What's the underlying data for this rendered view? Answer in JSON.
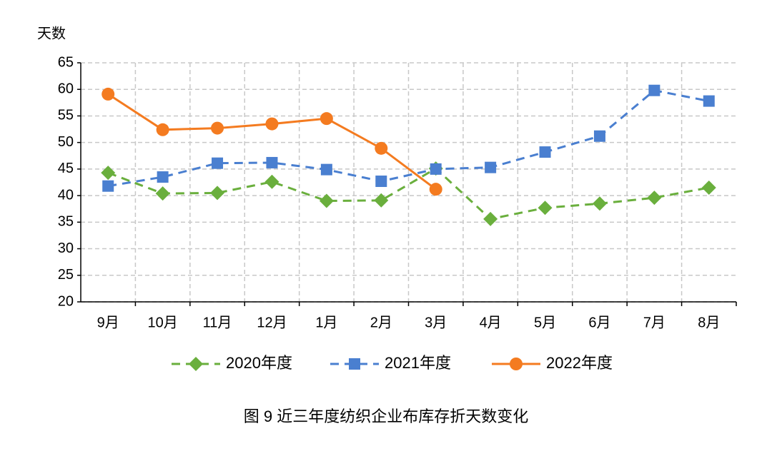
{
  "chart_data": {
    "type": "line",
    "y_label": "天数",
    "caption": "图 9   近三年度纺织企业布库存折天数变化",
    "categories": [
      "9月",
      "10月",
      "11月",
      "12月",
      "1月",
      "2月",
      "3月",
      "4月",
      "5月",
      "6月",
      "7月",
      "8月"
    ],
    "series": [
      {
        "name": "2020年度",
        "color": "#6aaf3d",
        "marker": "diamond",
        "dashed": true,
        "values": [
          44.3,
          40.4,
          40.5,
          42.6,
          39.0,
          39.1,
          45.1,
          35.6,
          37.7,
          38.5,
          39.6,
          41.5
        ]
      },
      {
        "name": "2021年度",
        "color": "#4a7fd0",
        "marker": "square",
        "dashed": true,
        "values": [
          41.8,
          43.5,
          46.1,
          46.2,
          44.9,
          42.7,
          45.0,
          45.3,
          48.2,
          51.2,
          59.8,
          57.8
        ]
      },
      {
        "name": "2022年度",
        "color": "#f47b20",
        "marker": "circle",
        "dashed": false,
        "values": [
          59.1,
          52.4,
          52.7,
          53.5,
          54.5,
          48.9,
          41.2,
          null,
          null,
          null,
          null,
          null
        ]
      }
    ],
    "ylim": [
      20,
      65
    ],
    "yticks": [
      20,
      25,
      30,
      35,
      40,
      45,
      50,
      55,
      60,
      65
    ],
    "grid": true
  }
}
